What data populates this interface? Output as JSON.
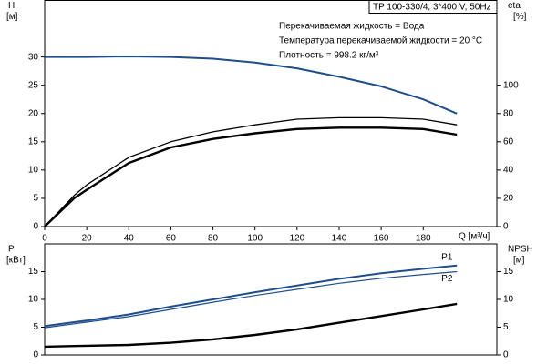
{
  "chart_data": [
    {
      "type": "line",
      "model": "TP 100-330/4, 3*400 V, 50Hz",
      "annotations": [
        "Перекачиваемая жидкость = Вода",
        "Температура перекачиваемой жидкости = 20 °C",
        "Плотность = 998.2 кг/м³"
      ],
      "ylabel": "H",
      "yunit": "[м]",
      "y2label": "eta",
      "y2unit": "[%]",
      "xlabel": "Q [м³/ч]",
      "x": [
        0,
        14,
        20,
        40,
        60,
        80,
        100,
        120,
        140,
        160,
        180,
        196
      ],
      "xlim": [
        0,
        215
      ],
      "xticks": [
        0,
        20,
        40,
        60,
        80,
        100,
        120,
        140,
        160,
        180
      ],
      "ylim": [
        0,
        40
      ],
      "yticks": [
        0,
        5,
        10,
        15,
        20,
        25,
        30
      ],
      "y2lim": [
        0,
        160
      ],
      "y2ticks": [
        0,
        20,
        40,
        60,
        80,
        100
      ],
      "series": [
        {
          "color": "#1f4e8c",
          "values": [
            30,
            30,
            30,
            30.1,
            30,
            29.7,
            29,
            28,
            26.5,
            24.8,
            22.5,
            20
          ]
        },
        {
          "color": "#000000",
          "axis": "y2",
          "values": [
            0,
            22,
            29.5,
            49,
            60,
            67,
            72,
            76,
            77,
            77,
            76,
            72
          ]
        },
        {
          "color": "#000000",
          "axis": "y2",
          "values": [
            0,
            20,
            26,
            45,
            56,
            62,
            66,
            69,
            70,
            70,
            69,
            65
          ]
        }
      ]
    },
    {
      "type": "line",
      "ylabel": "P",
      "yunit": "[кВт]",
      "y2label": "NPSH",
      "y2unit": "[м]",
      "x": [
        0,
        14,
        20,
        40,
        60,
        80,
        100,
        120,
        140,
        160,
        180,
        196
      ],
      "xlim": [
        0,
        215
      ],
      "ylim": [
        0,
        20
      ],
      "yticks": [
        0,
        5,
        10,
        15
      ],
      "y2lim": [
        0,
        20
      ],
      "y2ticks": [
        0,
        5,
        10,
        15
      ],
      "series": [
        {
          "name": "P1",
          "color": "#1f4e8c",
          "values": [
            5.2,
            5.9,
            6.2,
            7.3,
            8.7,
            10,
            11.3,
            12.5,
            13.7,
            14.7,
            15.5,
            16.1
          ]
        },
        {
          "name": "P2",
          "color": "#1f4e8c",
          "values": [
            4.9,
            5.6,
            5.9,
            6.9,
            8.2,
            9.5,
            10.7,
            11.8,
            12.9,
            13.8,
            14.5,
            15.0
          ]
        },
        {
          "color": "#000000",
          "axis": "y2",
          "values": [
            1.5,
            1.6,
            1.65,
            1.8,
            2.2,
            2.8,
            3.6,
            4.6,
            5.8,
            7.0,
            8.2,
            9.2
          ]
        }
      ]
    }
  ]
}
